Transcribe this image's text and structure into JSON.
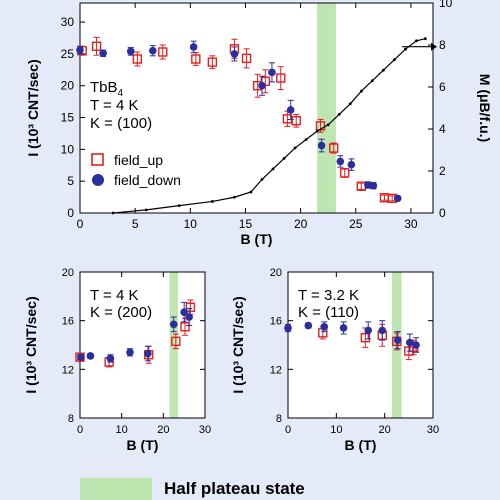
{
  "chart_data": [
    {
      "type": "scatter",
      "title": "",
      "xlabel": "B (T)",
      "ylabel": "I (10³ CNT/sec)",
      "ylabel_right": "M (μB/f.u.)",
      "xlim": [
        0,
        32
      ],
      "ylim": [
        0,
        33
      ],
      "ylim_right": [
        0,
        10
      ],
      "xticks": [
        0,
        5,
        10,
        15,
        20,
        25,
        30
      ],
      "yticks": [
        0,
        5,
        10,
        15,
        20,
        25,
        30
      ],
      "yticks_right": [
        0,
        2,
        4,
        6,
        8,
        10
      ],
      "annotation_lines": [
        "TbB4",
        "T = 4 K",
        "K = (100)"
      ],
      "shaded_region": [
        21.5,
        23.2
      ],
      "legend": [
        "field_up",
        "field_down"
      ],
      "series": [
        {
          "name": "field_up",
          "marker": "open-square",
          "color": "#e02020",
          "points": [
            [
              0.2,
              25.5,
              0.7
            ],
            [
              1.5,
              26.2,
              1.4
            ],
            [
              5.2,
              24.2,
              1.1
            ],
            [
              7.5,
              25.3,
              1.1
            ],
            [
              10.5,
              24.2,
              1.0
            ],
            [
              12,
              23.7,
              1.0
            ],
            [
              14,
              25.8,
              1.5
            ],
            [
              15.1,
              24.3,
              1.5
            ],
            [
              16.1,
              20.0,
              1.8
            ],
            [
              16.8,
              20.7,
              1.8
            ],
            [
              18.2,
              21.2,
              1.8
            ],
            [
              18.8,
              14.8,
              1.2
            ],
            [
              19.6,
              14.5,
              1.0
            ],
            [
              21.8,
              13.7,
              1.0
            ],
            [
              23,
              10.2,
              0.8
            ],
            [
              24,
              6.3,
              0.7
            ],
            [
              25.5,
              4.2,
              0.5
            ],
            [
              27.6,
              2.4,
              0.4
            ],
            [
              28.3,
              2.3,
              0.4
            ]
          ]
        },
        {
          "name": "field_down",
          "marker": "filled-circle",
          "color": "#2b2f9e",
          "points": [
            [
              0,
              25.6,
              0.6
            ],
            [
              2.1,
              25.1,
              0.5
            ],
            [
              4.6,
              25.4,
              0.6
            ],
            [
              6.6,
              25.5,
              0.8
            ],
            [
              10.3,
              26.1,
              0.9
            ],
            [
              14,
              25.0,
              1.1
            ],
            [
              16.5,
              20.0,
              1.5
            ],
            [
              17.4,
              22.1,
              1.5
            ],
            [
              19.1,
              16.2,
              1.5
            ],
            [
              21.9,
              10.6,
              1.0
            ],
            [
              23.6,
              8.1,
              0.9
            ],
            [
              24.6,
              7.6,
              0.9
            ],
            [
              26.1,
              4.4,
              0.5
            ],
            [
              26.6,
              4.3,
              0.5
            ],
            [
              28.8,
              2.3,
              0.3
            ]
          ]
        },
        {
          "name": "magnetization",
          "axis": "right",
          "color": "#000000",
          "points": [
            [
              3,
              0
            ],
            [
              6,
              0.15
            ],
            [
              9,
              0.35
            ],
            [
              12,
              0.55
            ],
            [
              14,
              0.75
            ],
            [
              15.5,
              1
            ],
            [
              16.5,
              1.6
            ],
            [
              17.5,
              2.1
            ],
            [
              18.5,
              2.6
            ],
            [
              19.5,
              3.1
            ],
            [
              20.5,
              3.5
            ],
            [
              21.5,
              3.9
            ],
            [
              22.5,
              4.2
            ],
            [
              23.5,
              4.7
            ],
            [
              24.5,
              5.2
            ],
            [
              25.5,
              5.8
            ],
            [
              26.5,
              6.3
            ],
            [
              27.5,
              6.8
            ],
            [
              28.5,
              7.3
            ],
            [
              29.5,
              7.8
            ],
            [
              30.5,
              8.2
            ],
            [
              31.3,
              8.3
            ]
          ]
        }
      ],
      "arrow_right": true
    },
    {
      "type": "scatter",
      "xlabel": "B (T)",
      "ylabel": "I (10³ CNT/sec)",
      "xlim": [
        0,
        30
      ],
      "ylim": [
        8,
        20
      ],
      "xticks": [
        0,
        10,
        20,
        30
      ],
      "yticks": [
        8,
        12,
        16,
        20
      ],
      "annotation_lines": [
        "T = 4 K",
        "K = (200)"
      ],
      "shaded_region": [
        21.5,
        23.5
      ],
      "series": [
        {
          "name": "field_up",
          "marker": "open-square",
          "color": "#e02020",
          "points": [
            [
              0,
              13.0,
              0.2
            ],
            [
              7,
              12.6,
              0.4
            ],
            [
              16.5,
              13.2,
              0.7
            ],
            [
              23,
              14.3,
              0.6
            ],
            [
              25.2,
              15.5,
              0.7
            ],
            [
              26.5,
              17.1,
              0.6
            ]
          ]
        },
        {
          "name": "field_down",
          "marker": "filled-circle",
          "color": "#2b2f9e",
          "points": [
            [
              0.2,
              13.0,
              0.2
            ],
            [
              2.5,
              13.1,
              0.2
            ],
            [
              7.3,
              12.9,
              0.3
            ],
            [
              12,
              13.4,
              0.3
            ],
            [
              16.3,
              13.3,
              0.6
            ],
            [
              22.5,
              15.7,
              0.6
            ],
            [
              25,
              16.7,
              0.8
            ],
            [
              26.2,
              16.3,
              0.7
            ]
          ]
        }
      ]
    },
    {
      "type": "scatter",
      "xlabel": "B (T)",
      "ylabel": "I (10³ CNT/sec)",
      "xlim": [
        0,
        30
      ],
      "ylim": [
        8,
        20
      ],
      "xticks": [
        0,
        10,
        20,
        30
      ],
      "yticks": [
        8,
        12,
        16,
        20
      ],
      "annotation_lines": [
        "T = 3.2 K",
        "K = (110)"
      ],
      "shaded_region": [
        21.5,
        23.5
      ],
      "series": [
        {
          "name": "field_up",
          "marker": "open-square",
          "color": "#e02020",
          "points": [
            [
              7.2,
              15.0,
              0.5
            ],
            [
              16,
              14.6,
              0.8
            ],
            [
              19.5,
              14.8,
              0.9
            ],
            [
              22.5,
              14.3,
              0.7
            ],
            [
              25,
              13.5,
              0.7
            ],
            [
              26,
              13.8,
              0.6
            ]
          ]
        },
        {
          "name": "field_down",
          "marker": "filled-circle",
          "color": "#2b2f9e",
          "points": [
            [
              0,
              15.4,
              0.3
            ],
            [
              4.2,
              15.6,
              0.2
            ],
            [
              7.5,
              15.5,
              0.4
            ],
            [
              11.5,
              15.4,
              0.5
            ],
            [
              16.6,
              15.2,
              0.7
            ],
            [
              19.5,
              15.2,
              0.8
            ],
            [
              22.7,
              14.4,
              0.7
            ],
            [
              25.2,
              14.2,
              0.7
            ],
            [
              26.5,
              14.0,
              0.6
            ]
          ]
        }
      ]
    }
  ],
  "bottom_legend": {
    "label": "Half plateau state",
    "color": "#bfe6b0"
  }
}
